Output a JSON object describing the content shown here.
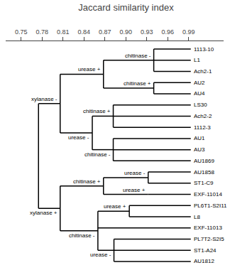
{
  "chart_data": {
    "type": "dendrogram",
    "title": "Jaccard similarity index",
    "xlim": [
      0.728,
      1.04
    ],
    "xticks": [
      0.75,
      0.78,
      0.81,
      0.84,
      0.87,
      {
        "value": 0.9,
        "label": "0.90"
      },
      0.93,
      0.96,
      0.99
    ],
    "grid": false,
    "color": "#000000",
    "leaf_x": 0.993,
    "tree": {
      "x": 0.775,
      "children": [
        {
          "label": "xylanase -",
          "x": 0.806,
          "children": [
            {
              "label": "urease +",
              "x": 0.868,
              "children": [
                {
                  "label": "chitinase -",
                  "x": 0.94,
                  "children": [
                    "1113-10",
                    "L1",
                    "Ach2-1"
                  ]
                },
                {
                  "label": "chitinase +",
                  "x": 0.94,
                  "children": [
                    "AU2",
                    "AU4"
                  ]
                }
              ]
            },
            {
              "label": "urease -",
              "x": 0.852,
              "children": [
                {
                  "label": "chitinase +",
                  "x": 0.882,
                  "children": [
                    "LS30",
                    "Ach2-2",
                    "1112-3"
                  ]
                },
                {
                  "label": "chitinase -",
                  "x": 0.882,
                  "children": [
                    "AU1",
                    "AU3",
                    "AU1869"
                  ]
                }
              ]
            }
          ]
        },
        {
          "label": "xylanase +",
          "x": 0.806,
          "children": [
            {
              "label": "chitinase +",
              "x": 0.868,
              "children": [
                {
                  "label": "urease -",
                  "x": 0.932,
                  "children": [
                    "AU1858",
                    "ST1-C9"
                  ]
                },
                {
                  "label": "urease +",
                  "x": 0.932,
                  "children": [
                    "EXF-11014"
                  ]
                }
              ]
            },
            {
              "label": "chitinase -",
              "x": 0.86,
              "children": [
                {
                  "label": "urease +",
                  "x": 0.905,
                  "children": [
                    "PL6T1-S2I11",
                    "L8"
                  ]
                },
                "EXF-11013",
                {
                  "label": "urease -",
                  "x": 0.883,
                  "children": [
                    "PL7T2-S2I5",
                    "ST1-A24",
                    "AU1812"
                  ]
                }
              ]
            }
          ]
        }
      ]
    }
  }
}
